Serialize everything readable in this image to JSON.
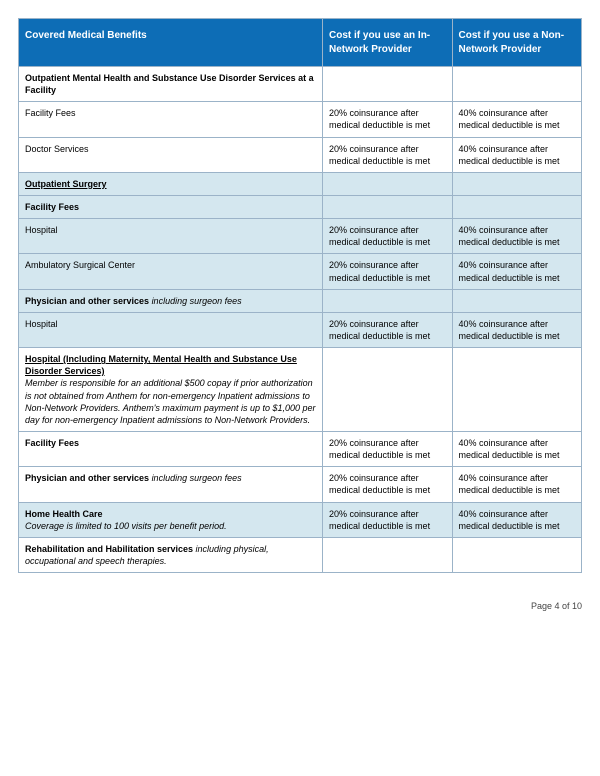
{
  "header": {
    "col1": "Covered Medical Benefits",
    "col2": "Cost if you use an In-Network Provider",
    "col3": "Cost if you use a Non-Network Provider"
  },
  "costs": {
    "in20": "20% coinsurance after medical deductible is met",
    "out40": "40% coinsurance after medical deductible is met"
  },
  "sections": {
    "outpatientMH": {
      "title": "Outpatient Mental Health and Substance Use Disorder Services at a Facility",
      "facilityFees": "Facility Fees",
      "doctorServices": "Doctor Services"
    },
    "outpatientSurgery": {
      "title": "Outpatient Surgery",
      "facilityFees": "Facility Fees",
      "hospital": "Hospital",
      "ambulatory": "Ambulatory Surgical Center",
      "physicianLabel": "Physician and other services ",
      "physicianItalic": "including surgeon fees"
    },
    "hospitalMaternity": {
      "title": "Hospital (Including Maternity, Mental Health and Substance Use Disorder Services)",
      "note": "Member is responsible for an additional $500 copay if prior authorization is not obtained from Anthem for non-emergency Inpatient admissions to Non-Network Providers. Anthem's maximum payment is up to $1,000 per day for non-emergency Inpatient admissions to Non-Network Providers.",
      "facilityFees": "Facility Fees",
      "physicianLabel": "Physician and other services ",
      "physicianItalic": "including surgeon fees"
    },
    "homeHealth": {
      "title": "Home Health Care",
      "note": "Coverage is limited to 100 visits per benefit period."
    },
    "rehab": {
      "label": "Rehabilitation and Habilitation services ",
      "italic": "including physical, occupational and speech therapies."
    }
  },
  "footer": {
    "pageText": "Page 4 of 10"
  },
  "styling": {
    "headerBg": "#0d6db6",
    "sectionBg": "#d4e7ef",
    "borderColor": "#9bb3c8",
    "baseFontSize": 9,
    "headerFontSize": 10,
    "pageWidth": 600,
    "pageHeight": 776,
    "columnWidths": [
      "54%",
      "23%",
      "23%"
    ]
  }
}
